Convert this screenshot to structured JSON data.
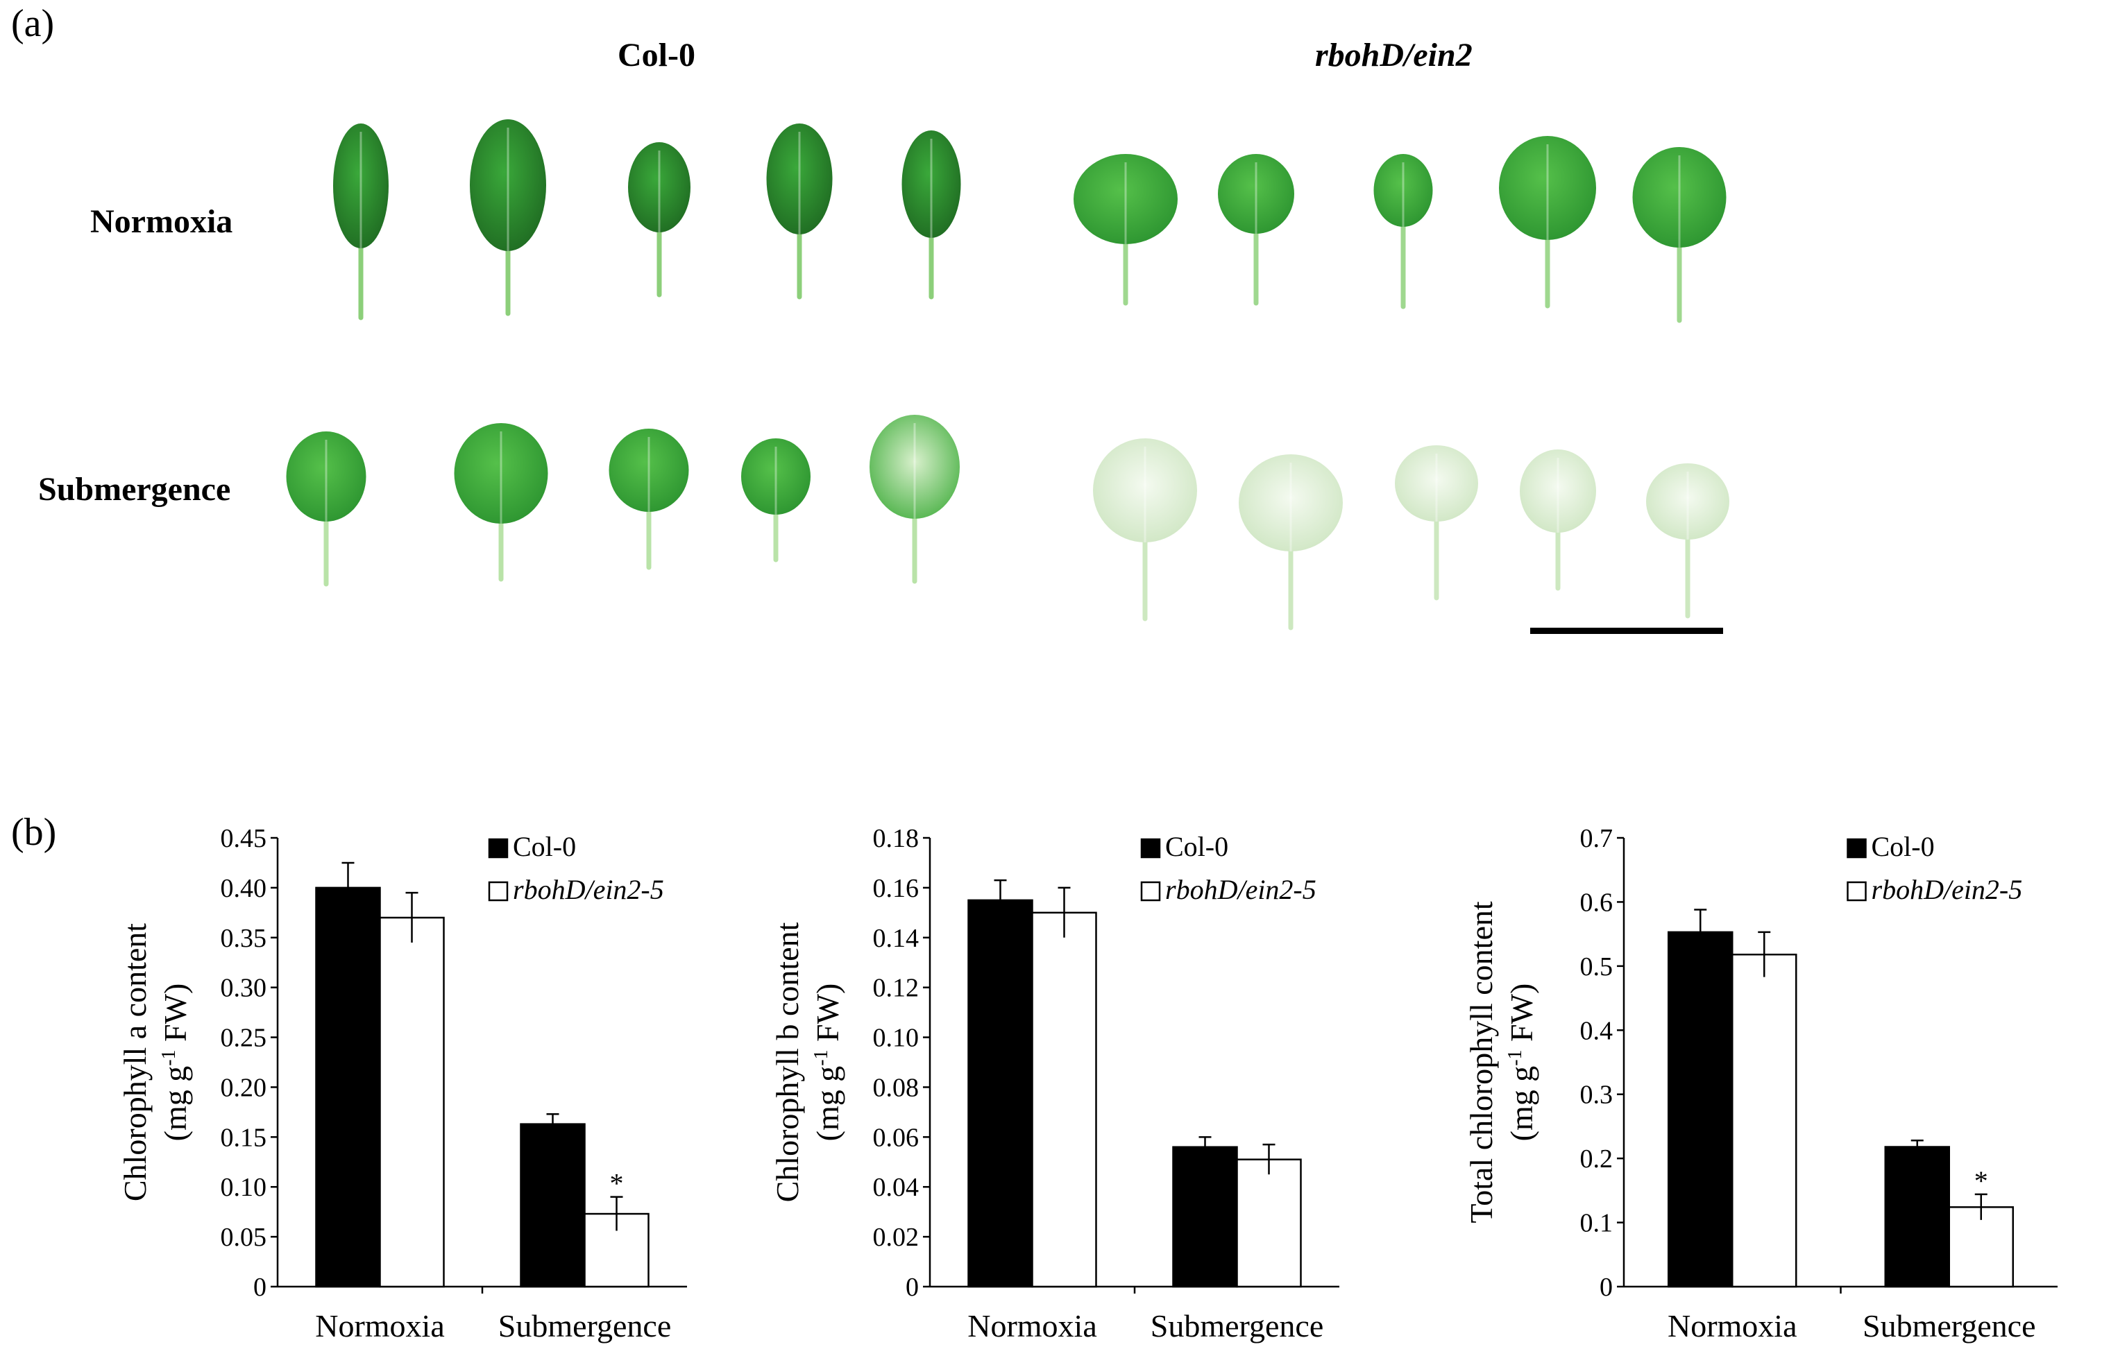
{
  "panel_a": {
    "label": "(a)",
    "genotypes": [
      "Col-0",
      "rbohD/ein2"
    ],
    "conditions": [
      "Normoxia",
      "Submergence"
    ]
  },
  "panel_b": {
    "label": "(b)"
  },
  "colors": {
    "col0_bar": "#000000",
    "mutant_bar": "#ffffff",
    "healthy_leaf": "#2f8a2e",
    "pale_leaf": "#cfe6c3"
  },
  "chart_data": [
    {
      "type": "bar",
      "categories": [
        "Normoxia",
        "Submergence"
      ],
      "ylabel_line1": "Chlorophyll a content",
      "ylabel_line2": "(mg g",
      "ylabel_sup": "-1",
      "ylabel_line2_end": " FW)",
      "ylim": [
        0,
        0.45
      ],
      "yticks": [
        "0",
        "0.05",
        "0.10",
        "0.15",
        "0.20",
        "0.25",
        "0.30",
        "0.35",
        "0.40",
        "0.45"
      ],
      "legend_position": "top-right",
      "series": [
        {
          "name": "Col-0",
          "values": [
            0.4,
            0.163
          ],
          "errors": [
            0.025,
            0.01
          ],
          "color": "#000000"
        },
        {
          "name": "rbohD/ein2-5",
          "values": [
            0.37,
            0.073
          ],
          "errors": [
            0.025,
            0.017
          ],
          "color": "#ffffff"
        }
      ],
      "annotations": [
        {
          "category": "Submergence",
          "series": "rbohD/ein2-5",
          "text": "*"
        }
      ]
    },
    {
      "type": "bar",
      "categories": [
        "Normoxia",
        "Submergence"
      ],
      "ylabel_line1": "Chlorophyll b content",
      "ylabel_line2": "(mg g",
      "ylabel_sup": "-1",
      "ylabel_line2_end": " FW)",
      "ylim": [
        0,
        0.18
      ],
      "yticks": [
        "0",
        "0.02",
        "0.04",
        "0.06",
        "0.08",
        "0.10",
        "0.12",
        "0.14",
        "0.16",
        "0.18"
      ],
      "legend_position": "top-right",
      "series": [
        {
          "name": "Col-0",
          "values": [
            0.155,
            0.056
          ],
          "errors": [
            0.008,
            0.004
          ],
          "color": "#000000"
        },
        {
          "name": "rbohD/ein2-5",
          "values": [
            0.15,
            0.051
          ],
          "errors": [
            0.01,
            0.006
          ],
          "color": "#ffffff"
        }
      ],
      "annotations": []
    },
    {
      "type": "bar",
      "categories": [
        "Normoxia",
        "Submergence"
      ],
      "ylabel_line1": "Total chlorophyll  content",
      "ylabel_line2": "(mg g",
      "ylabel_sup": "-1",
      "ylabel_line2_end": " FW)",
      "ylim": [
        0,
        0.7
      ],
      "yticks": [
        "0",
        "0.1",
        "0.2",
        "0.3",
        "0.4",
        "0.5",
        "0.6",
        "0.7"
      ],
      "legend_position": "top-right",
      "series": [
        {
          "name": "Col-0",
          "values": [
            0.553,
            0.218
          ],
          "errors": [
            0.035,
            0.01
          ],
          "color": "#000000"
        },
        {
          "name": "rbohD/ein2-5",
          "values": [
            0.518,
            0.124
          ],
          "errors": [
            0.035,
            0.02
          ],
          "color": "#ffffff"
        }
      ],
      "annotations": [
        {
          "category": "Submergence",
          "series": "rbohD/ein2-5",
          "text": "*"
        }
      ]
    }
  ]
}
